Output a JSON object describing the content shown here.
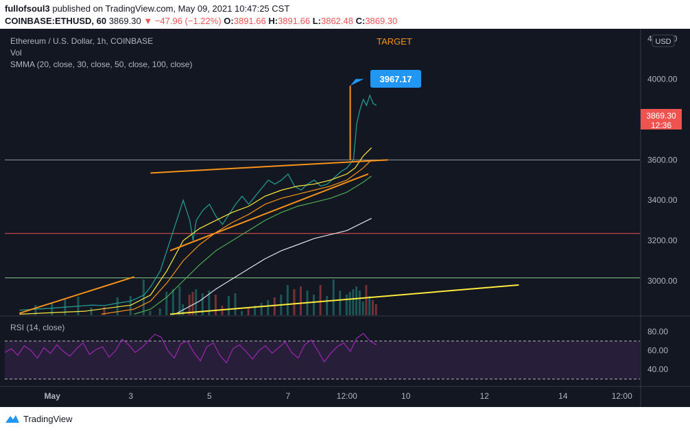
{
  "header": {
    "publisher": "fullofsoul3",
    "published_text": "published on TradingView.com, May 09, 2021 10:47:25 CST",
    "symbol": "COINBASE:ETHUSD, 60",
    "price": "3869.30",
    "change": "▼ −47.96 (−1.22%)",
    "o_label": "O:",
    "o": "3891.66",
    "h_label": "H:",
    "h": "3891.66",
    "l_label": "L:",
    "l": "3862.48",
    "c_label": "C:",
    "c": "3869.30"
  },
  "legend": {
    "title": "Ethereum / U.S. Dollar, 1h, COINBASE",
    "vol": "Vol",
    "smma": "SMMA (20, close, 30, close, 50, close, 100, close)",
    "rsi": "RSI (14, close)"
  },
  "annotations": {
    "target_label": "TARGET",
    "target_value": "3967.17",
    "current_price": "3869.30",
    "countdown": "12:36",
    "currency": "USD"
  },
  "footer": {
    "brand": "TradingView"
  },
  "colors": {
    "background": "#131722",
    "up": "#26a69a",
    "down": "#ef5350",
    "accent_orange": "#f7931a",
    "target_blue": "#2196f3",
    "yellow": "#ffeb3b",
    "rsi_line": "#9c27b0"
  },
  "chart_data": [
    {
      "type": "line",
      "title": "Ethereum / U.S. Dollar, 1h, COINBASE",
      "y_ticks": [
        3000,
        3200,
        3400,
        3600,
        4000,
        4200
      ],
      "ylim": [
        2830,
        4250
      ],
      "x_ticks": [
        "May",
        "3",
        "5",
        "7",
        "12:00",
        "10",
        "12",
        "14",
        "12:00"
      ],
      "x_tick_hours": [
        0,
        48,
        96,
        144,
        180,
        216,
        264,
        312,
        348
      ],
      "xlim": [
        -29,
        359
      ],
      "horizontal_levels": [
        {
          "value": 3600,
          "color": "#9598a1"
        },
        {
          "value": 3235,
          "color": "#ef5350"
        },
        {
          "value": 3015,
          "color": "#81c784"
        }
      ],
      "series": [
        {
          "kind": "price",
          "color": "#26a69a",
          "points": [
            [
              -20,
              2855
            ],
            [
              -10,
              2860
            ],
            [
              0,
              2865
            ],
            [
              8,
              2870
            ],
            [
              16,
              2875
            ],
            [
              24,
              2880
            ],
            [
              32,
              2878
            ],
            [
              40,
              2890
            ],
            [
              48,
              2900
            ],
            [
              56,
              2930
            ],
            [
              60,
              2970
            ],
            [
              66,
              3050
            ],
            [
              70,
              3150
            ],
            [
              74,
              3250
            ],
            [
              78,
              3350
            ],
            [
              80,
              3400
            ],
            [
              84,
              3300
            ],
            [
              86,
              3200
            ],
            [
              88,
              3300
            ],
            [
              92,
              3350
            ],
            [
              96,
              3380
            ],
            [
              100,
              3320
            ],
            [
              104,
              3280
            ],
            [
              108,
              3330
            ],
            [
              112,
              3380
            ],
            [
              116,
              3420
            ],
            [
              120,
              3380
            ],
            [
              124,
              3420
            ],
            [
              128,
              3460
            ],
            [
              132,
              3500
            ],
            [
              136,
              3480
            ],
            [
              140,
              3500
            ],
            [
              144,
              3530
            ],
            [
              148,
              3470
            ],
            [
              152,
              3450
            ],
            [
              156,
              3480
            ],
            [
              160,
              3500
            ],
            [
              164,
              3470
            ],
            [
              168,
              3480
            ],
            [
              172,
              3510
            ],
            [
              176,
              3540
            ],
            [
              180,
              3560
            ],
            [
              182,
              3580
            ],
            [
              184,
              3600
            ],
            [
              186,
              3780
            ],
            [
              188,
              3850
            ],
            [
              190,
              3900
            ],
            [
              192,
              3870
            ],
            [
              194,
              3920
            ],
            [
              196,
              3880
            ],
            [
              198,
              3870
            ]
          ]
        },
        {
          "kind": "smma20",
          "color": "#ffeb3b",
          "points": [
            [
              -20,
              2835
            ],
            [
              20,
              2850
            ],
            [
              48,
              2880
            ],
            [
              60,
              2930
            ],
            [
              70,
              3050
            ],
            [
              80,
              3200
            ],
            [
              90,
              3260
            ],
            [
              100,
              3300
            ],
            [
              110,
              3340
            ],
            [
              120,
              3370
            ],
            [
              130,
              3420
            ],
            [
              140,
              3450
            ],
            [
              150,
              3470
            ],
            [
              160,
              3480
            ],
            [
              170,
              3500
            ],
            [
              180,
              3530
            ],
            [
              185,
              3560
            ],
            [
              190,
              3620
            ],
            [
              195,
              3660
            ]
          ]
        },
        {
          "kind": "smma30",
          "color": "#f7931a",
          "points": [
            [
              30,
              2835
            ],
            [
              50,
              2860
            ],
            [
              60,
              2900
            ],
            [
              70,
              2990
            ],
            [
              80,
              3100
            ],
            [
              90,
              3180
            ],
            [
              100,
              3240
            ],
            [
              110,
              3290
            ],
            [
              120,
              3330
            ],
            [
              130,
              3380
            ],
            [
              140,
              3410
            ],
            [
              150,
              3430
            ],
            [
              160,
              3450
            ],
            [
              170,
              3470
            ],
            [
              180,
              3500
            ],
            [
              190,
              3560
            ],
            [
              195,
              3600
            ]
          ]
        },
        {
          "kind": "smma50",
          "color": "#4caf50",
          "points": [
            [
              50,
              2835
            ],
            [
              60,
              2860
            ],
            [
              70,
              2920
            ],
            [
              80,
              3000
            ],
            [
              90,
              3080
            ],
            [
              100,
              3150
            ],
            [
              110,
              3200
            ],
            [
              120,
              3250
            ],
            [
              130,
              3300
            ],
            [
              140,
              3340
            ],
            [
              150,
              3370
            ],
            [
              160,
              3390
            ],
            [
              170,
              3410
            ],
            [
              180,
              3440
            ],
            [
              190,
              3490
            ],
            [
              195,
              3520
            ]
          ]
        },
        {
          "kind": "smma100",
          "color": "#e0e3eb",
          "points": [
            [
              75,
              2835
            ],
            [
              90,
              2900
            ],
            [
              100,
              2960
            ],
            [
              110,
              3010
            ],
            [
              120,
              3060
            ],
            [
              130,
              3110
            ],
            [
              140,
              3150
            ],
            [
              150,
              3180
            ],
            [
              160,
              3210
            ],
            [
              170,
              3230
            ],
            [
              180,
              3250
            ],
            [
              190,
              3290
            ],
            [
              195,
              3310
            ]
          ]
        }
      ],
      "drawings": [
        {
          "name": "upper-wedge-line",
          "color": "#f7931a",
          "from": [
            60,
            3535
          ],
          "to": [
            205,
            3600
          ]
        },
        {
          "name": "lower-wedge-line",
          "color": "#f7931a",
          "from": [
            72,
            3150
          ],
          "to": [
            193,
            3530
          ]
        },
        {
          "name": "old-channel-line",
          "color": "#f7931a",
          "from": [
            -20,
            2840
          ],
          "to": [
            50,
            3020
          ]
        },
        {
          "name": "support-trend-line",
          "color": "#ffeb3b",
          "from": [
            72,
            2835
          ],
          "to": [
            285,
            2980
          ]
        },
        {
          "name": "target-vertical",
          "color": "#f7931a",
          "from": [
            182,
            3600
          ],
          "to": [
            182,
            3967.17
          ]
        }
      ]
    },
    {
      "type": "line",
      "title": "RSI (14, close)",
      "y_ticks": [
        40,
        60,
        80
      ],
      "ylim": [
        25,
        90
      ],
      "bands": [
        70,
        30
      ],
      "series": [
        {
          "name": "RSI",
          "color": "#9c27b0",
          "values": [
            58,
            62,
            55,
            65,
            60,
            52,
            63,
            57,
            66,
            59,
            54,
            62,
            68,
            56,
            61,
            64,
            53,
            60,
            72,
            66,
            58,
            63,
            70,
            77,
            74,
            60,
            52,
            67,
            70,
            58,
            49,
            64,
            68,
            55,
            47,
            62,
            66,
            59,
            51,
            60,
            65,
            57,
            63,
            69,
            58,
            52,
            66,
            71,
            60,
            48,
            57,
            64,
            68,
            59,
            73,
            78,
            70,
            66
          ]
        }
      ]
    }
  ]
}
